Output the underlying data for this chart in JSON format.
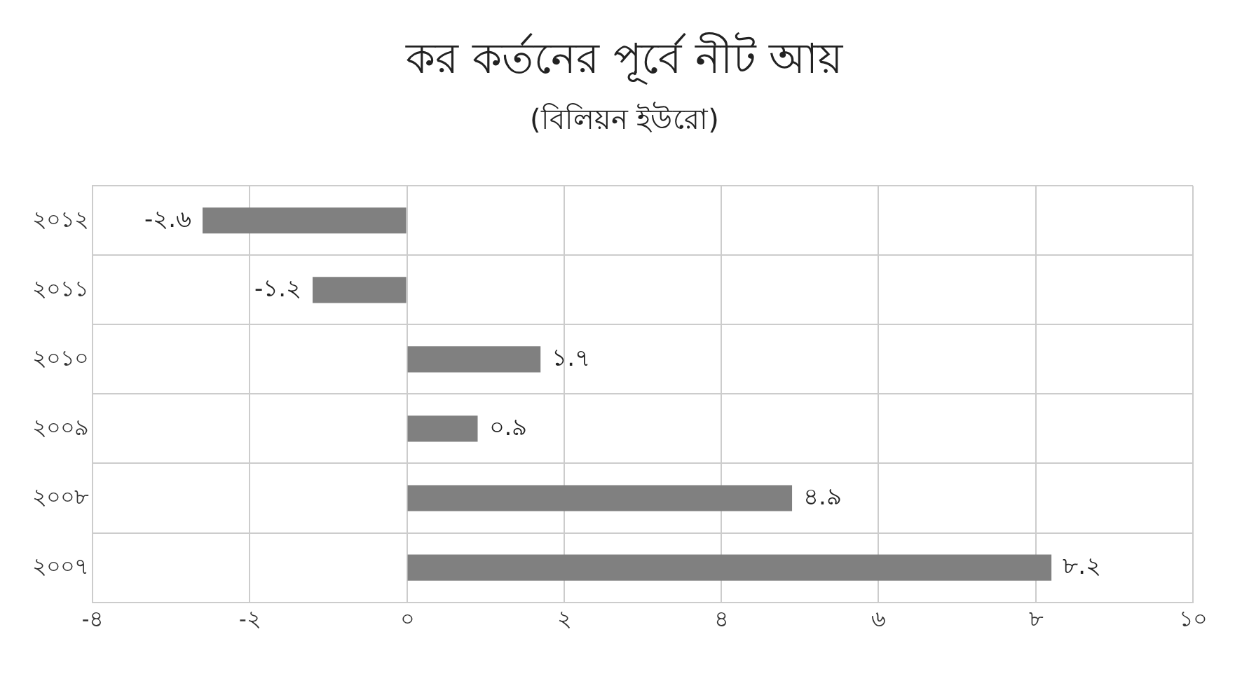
{
  "chart_data": {
    "type": "bar",
    "orientation": "horizontal",
    "title": "কর কর্তনের পূর্বে নীট আয়",
    "subtitle": "(বিলিয়ন ইউরো)",
    "categories": [
      "২০১২",
      "২০১১",
      "২০১০",
      "২০০৯",
      "২০০৮",
      "২০০৭"
    ],
    "values": [
      -2.6,
      -1.2,
      1.7,
      0.9,
      4.9,
      8.2
    ],
    "value_labels": [
      "-২.৬",
      "-১.২",
      "১.৭",
      "০.৯",
      "৪.৯",
      "৮.২"
    ],
    "color": "#808080",
    "xlim": [
      -4,
      10
    ],
    "xticks": [
      {
        "value": -4,
        "label": "-৪"
      },
      {
        "value": -2,
        "label": "-২"
      },
      {
        "value": 0,
        "label": "০"
      },
      {
        "value": 2,
        "label": "২"
      },
      {
        "value": 4,
        "label": "৪"
      },
      {
        "value": 6,
        "label": "৬"
      },
      {
        "value": 8,
        "label": "৮"
      },
      {
        "value": 10,
        "label": "১০"
      }
    ],
    "grid": true,
    "legend": false
  }
}
